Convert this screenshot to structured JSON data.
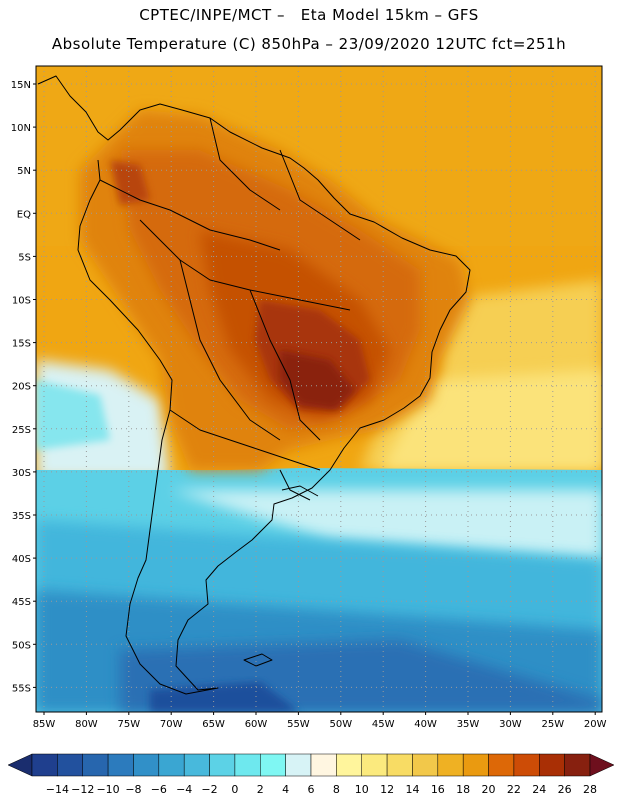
{
  "header": {
    "line1": "CPTEC/INPE/MCT –   Eta Model 15km – GFS",
    "line2": "Absolute Temperature (C) 850hPa – 23/09/2020 12UTC fct=251h"
  },
  "map": {
    "lat_ticks": [
      "15N",
      "10N",
      "5N",
      "EQ",
      "5S",
      "10S",
      "15S",
      "20S",
      "25S",
      "30S",
      "35S",
      "40S",
      "45S",
      "50S",
      "55S"
    ],
    "lon_ticks": [
      "85W",
      "80W",
      "75W",
      "70W",
      "65W",
      "60W",
      "55W",
      "50W",
      "45W",
      "40W",
      "35W",
      "30W",
      "25W",
      "20W"
    ],
    "grid": "dotted",
    "field": "temperature at 850hPa",
    "colors": {
      "ocean_north": "#f1a90f",
      "continent_hot": "#d76a08",
      "core_hot": "#8f2408",
      "south_cold": "#3db8dc",
      "deep_cold": "#2b5fa6"
    }
  },
  "colorbar": {
    "labels": [
      "-14",
      "-12",
      "-10",
      "-8",
      "-6",
      "-4",
      "-2",
      "0",
      "2",
      "4",
      "6",
      "8",
      "10",
      "12",
      "14",
      "16",
      "18",
      "20",
      "22",
      "24",
      "26",
      "28"
    ],
    "under_color": "#1a2d6e",
    "over_color": "#6e0f1d",
    "colors": [
      "#1f3f8e",
      "#22519e",
      "#2766ae",
      "#2c7bbd",
      "#3190c8",
      "#3aa6d2",
      "#48b9dc",
      "#5cd2e6",
      "#6ee8ee",
      "#7ff7f3",
      "#d7f3f6",
      "#fff6e1",
      "#fff59c",
      "#fbea7e",
      "#f8dc64",
      "#f2c84a",
      "#efb123",
      "#ea9a10",
      "#dd6807",
      "#cd4c06",
      "#a92f05",
      "#87200f"
    ]
  }
}
